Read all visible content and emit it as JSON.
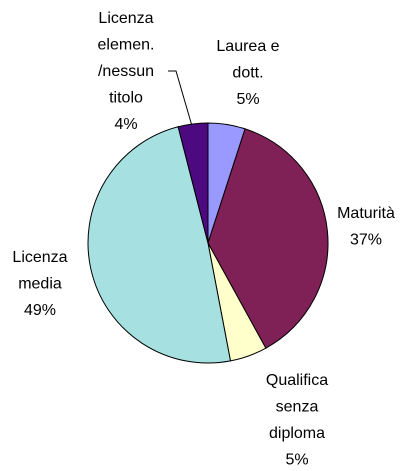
{
  "chart_data": {
    "type": "pie",
    "categories": [
      [
        "Laurea e",
        "dott."
      ],
      [
        "Maturità"
      ],
      [
        "Qualifica",
        "senza",
        "diploma"
      ],
      [
        "Licenza",
        "media"
      ],
      [
        "Licenza",
        "elemen.",
        "/nessun",
        "titolo"
      ]
    ],
    "values": [
      5,
      37,
      5,
      49,
      4
    ],
    "value_labels": [
      "5%",
      "37%",
      "5%",
      "49%",
      "4%"
    ],
    "colors": [
      "#9999ff",
      "#7f2157",
      "#ffffcc",
      "#a6e0e0",
      "#4d0a80"
    ]
  }
}
